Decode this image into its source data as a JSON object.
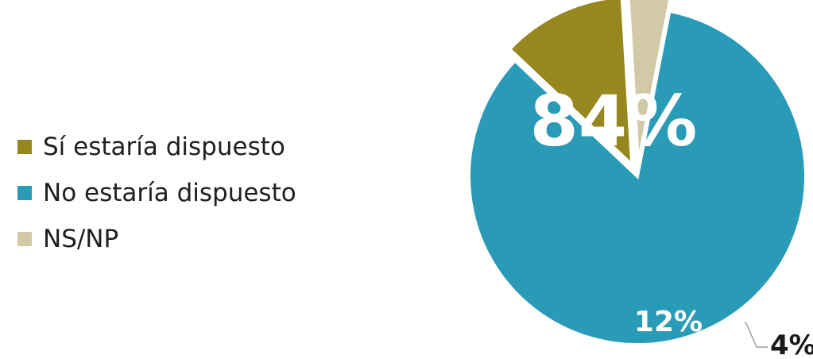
{
  "chart_data": {
    "type": "pie",
    "legend_position": "left",
    "slices": [
      {
        "label": "No estaría dispuesto",
        "value": 84,
        "display": "84%",
        "color": "#2a9bb7",
        "label_color": "#ffffff",
        "explode": 0
      },
      {
        "label": "Sí estaría dispuesto",
        "value": 12,
        "display": "12%",
        "color": "#97871f",
        "label_color": "#ffffff",
        "explode": 1
      },
      {
        "label": "NS/NP",
        "value": 4,
        "display": "4%",
        "color": "#d2c9a6",
        "label_color": "#1a1a1a",
        "explode": 1
      }
    ],
    "legend_order": [
      1,
      0,
      2
    ]
  }
}
